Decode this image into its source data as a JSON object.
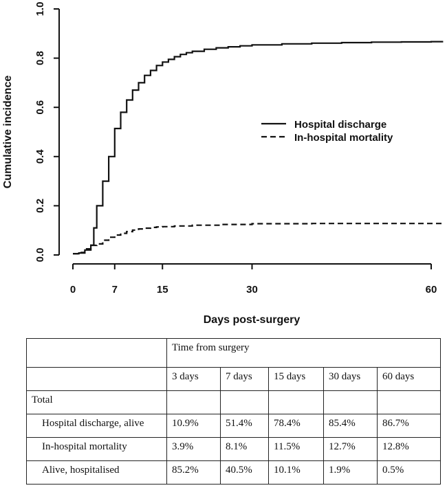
{
  "chart_data": {
    "type": "line",
    "title": "",
    "xlabel": "Days post-surgery",
    "ylabel": "Cumulative incidence",
    "xlim": [
      0,
      62
    ],
    "ylim": [
      0,
      1.0
    ],
    "x_ticks": [
      0,
      7,
      15,
      30,
      60
    ],
    "y_ticks": [
      "0.0",
      "0.2",
      "0.4",
      "0.6",
      "0.8",
      "1.0"
    ],
    "legend_position": "center-right",
    "series": [
      {
        "name": "Hospital discharge",
        "style": "solid",
        "step": true,
        "points": [
          [
            0,
            0.005
          ],
          [
            1,
            0.008
          ],
          [
            2,
            0.02
          ],
          [
            3,
            0.04
          ],
          [
            3.5,
            0.11
          ],
          [
            4,
            0.2
          ],
          [
            5,
            0.3
          ],
          [
            6,
            0.4
          ],
          [
            7,
            0.514
          ],
          [
            8,
            0.58
          ],
          [
            9,
            0.63
          ],
          [
            10,
            0.67
          ],
          [
            11,
            0.7
          ],
          [
            12,
            0.73
          ],
          [
            13,
            0.75
          ],
          [
            14,
            0.77
          ],
          [
            15,
            0.784
          ],
          [
            16,
            0.795
          ],
          [
            17,
            0.806
          ],
          [
            18,
            0.815
          ],
          [
            19,
            0.822
          ],
          [
            20,
            0.828
          ],
          [
            22,
            0.836
          ],
          [
            24,
            0.842
          ],
          [
            26,
            0.846
          ],
          [
            28,
            0.85
          ],
          [
            30,
            0.854
          ],
          [
            35,
            0.858
          ],
          [
            40,
            0.861
          ],
          [
            45,
            0.863
          ],
          [
            50,
            0.865
          ],
          [
            55,
            0.866
          ],
          [
            60,
            0.867
          ],
          [
            62,
            0.867
          ]
        ]
      },
      {
        "name": "In-hospital mortality",
        "style": "dashed",
        "step": true,
        "points": [
          [
            0,
            0.005
          ],
          [
            1,
            0.01
          ],
          [
            2,
            0.025
          ],
          [
            3,
            0.039
          ],
          [
            4,
            0.045
          ],
          [
            5,
            0.06
          ],
          [
            6,
            0.072
          ],
          [
            7,
            0.081
          ],
          [
            8,
            0.088
          ],
          [
            9,
            0.095
          ],
          [
            10,
            0.101
          ],
          [
            11,
            0.106
          ],
          [
            12,
            0.109
          ],
          [
            13,
            0.112
          ],
          [
            14,
            0.114
          ],
          [
            15,
            0.115
          ],
          [
            17,
            0.118
          ],
          [
            20,
            0.121
          ],
          [
            25,
            0.124
          ],
          [
            30,
            0.127
          ],
          [
            40,
            0.128
          ],
          [
            50,
            0.128
          ],
          [
            60,
            0.128
          ],
          [
            62,
            0.128
          ]
        ]
      }
    ]
  },
  "table": {
    "group_header": "Time from surgery",
    "columns": [
      "3 days",
      "7 days",
      "15 days",
      "30 days",
      "60 days"
    ],
    "section_label": "Total",
    "rows": [
      {
        "label": "Hospital discharge, alive",
        "values": [
          "10.9%",
          "51.4%",
          "78.4%",
          "85.4%",
          "86.7%"
        ]
      },
      {
        "label": "In-hospital mortality",
        "values": [
          "3.9%",
          "8.1%",
          "11.5%",
          "12.7%",
          "12.8%"
        ]
      },
      {
        "label": "Alive, hospitalised",
        "values": [
          "85.2%",
          "40.5%",
          "10.1%",
          "1.9%",
          "0.5%"
        ]
      }
    ]
  }
}
